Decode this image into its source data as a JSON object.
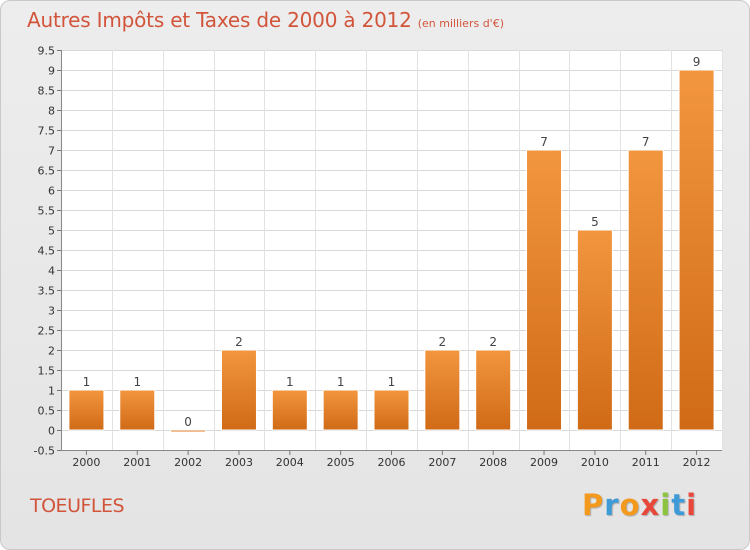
{
  "chart_data": {
    "type": "bar",
    "title": "Autres Impôts et Taxes de 2000 à 2012",
    "unit_note": "(en milliers d'€)",
    "categories": [
      "2000",
      "2001",
      "2002",
      "2003",
      "2004",
      "2005",
      "2006",
      "2007",
      "2008",
      "2009",
      "2010",
      "2011",
      "2012"
    ],
    "values": [
      1,
      1,
      0,
      2,
      1,
      1,
      1,
      2,
      2,
      7,
      5,
      7,
      9
    ],
    "ylim": [
      -0.5,
      9.5
    ],
    "yticks": [
      "-0.5",
      "0",
      "0.5",
      "1",
      "1.5",
      "2",
      "2.5",
      "3",
      "3.5",
      "4",
      "4.5",
      "5",
      "5.5",
      "6",
      "6.5",
      "7",
      "7.5",
      "8",
      "8.5",
      "9",
      "9.5"
    ],
    "grid": true,
    "bar_color": "#f2963f",
    "bar_color_dark": "#d06a17"
  },
  "commune": "TOEUFLES",
  "logo": {
    "letters": [
      "P",
      "r",
      "o",
      "x",
      "i",
      "t",
      "i"
    ],
    "colors": [
      "#f39a1e",
      "#3f9bd7",
      "#f39a1e",
      "#e8483a",
      "#8cc43f",
      "#3f9bd7",
      "#e8483a"
    ]
  },
  "colors": {
    "title": "#d2553b"
  }
}
